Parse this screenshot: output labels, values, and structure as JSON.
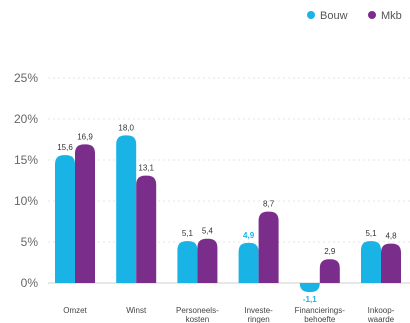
{
  "chart_data": {
    "type": "bar",
    "categories": [
      "Omzet",
      "Winst",
      "Personeels-\nkosten",
      "Investe-\nringen",
      "Financierings-\nbehoefte",
      "Inkoop-\nwaarde"
    ],
    "series": [
      {
        "name": "Bouw",
        "color": "#1ab3e6",
        "values": [
          15.6,
          18.0,
          5.1,
          4.9,
          -1.1,
          5.1
        ],
        "labels": [
          "15,6",
          "18,0",
          "5,1",
          "4,9",
          "-1,1",
          "5,1"
        ]
      },
      {
        "name": "Mkb",
        "color": "#7b2d8b",
        "values": [
          16.9,
          13.1,
          5.4,
          8.7,
          2.9,
          4.8
        ],
        "labels": [
          "16,9",
          "13,1",
          "5,4",
          "8,7",
          "2,9",
          "4,8"
        ]
      }
    ],
    "yticks": [
      "0%",
      "5%",
      "10%",
      "15%",
      "20%",
      "25%"
    ],
    "ylim": [
      0,
      25
    ],
    "grid": true,
    "legend_position": "top-right"
  }
}
